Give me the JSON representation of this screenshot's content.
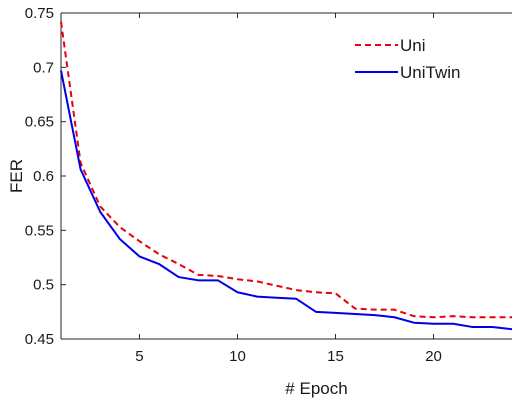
{
  "chart_data": {
    "type": "line",
    "title": "",
    "xlabel": "# Epoch",
    "ylabel": "FER",
    "xlim": [
      1,
      24
    ],
    "ylim": [
      0.45,
      0.75
    ],
    "xticks": [
      5,
      10,
      15,
      20
    ],
    "yticks": [
      0.45,
      0.5,
      0.55,
      0.6,
      0.65,
      0.7,
      0.75
    ],
    "ytick_labels": [
      "0.45",
      "0.5",
      "0.55",
      "0.6",
      "0.65",
      "0.7",
      "0.75"
    ],
    "grid": false,
    "legend_position": "top-right",
    "series": [
      {
        "name": "Uni",
        "color": "#e8000b",
        "style": "dashed",
        "x": [
          1,
          2,
          3,
          4,
          5,
          6,
          7,
          8,
          9,
          10,
          11,
          12,
          13,
          14,
          15,
          16,
          17,
          18,
          19,
          20,
          21,
          22,
          23,
          24
        ],
        "y": [
          0.742,
          0.612,
          0.572,
          0.553,
          0.54,
          0.528,
          0.519,
          0.509,
          0.508,
          0.505,
          0.503,
          0.499,
          0.495,
          0.493,
          0.492,
          0.478,
          0.477,
          0.477,
          0.471,
          0.47,
          0.471,
          0.47,
          0.47,
          0.47
        ]
      },
      {
        "name": "UniTwin",
        "color": "#0000e6",
        "style": "solid",
        "x": [
          1,
          2,
          3,
          4,
          5,
          6,
          7,
          8,
          9,
          10,
          11,
          12,
          13,
          14,
          15,
          16,
          17,
          18,
          19,
          20,
          21,
          22,
          23,
          24
        ],
        "y": [
          0.697,
          0.606,
          0.567,
          0.542,
          0.526,
          0.519,
          0.507,
          0.504,
          0.504,
          0.493,
          0.489,
          0.488,
          0.487,
          0.475,
          0.474,
          0.473,
          0.472,
          0.47,
          0.465,
          0.464,
          0.464,
          0.461,
          0.461,
          0.459
        ]
      }
    ]
  }
}
